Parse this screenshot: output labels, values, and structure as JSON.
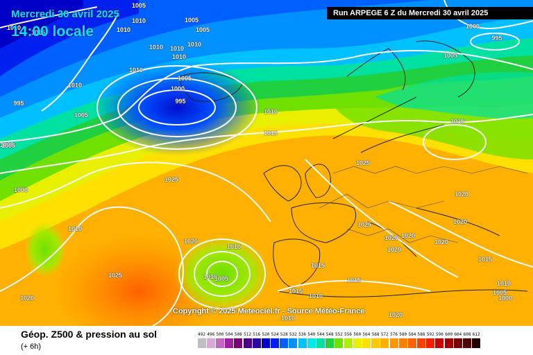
{
  "header": {
    "date": "Mercredi 30 avril 2025",
    "time": "14:00 locale",
    "run": "Run ARPEGE 6 Z du Mercredi 30 avril 2025"
  },
  "copyright": "Copyright © 2025 Meteociel.fr - Source Météo-France",
  "footer": {
    "title": "Géop. Z500 & pression au sol",
    "subtitle": "(+ 6h)"
  },
  "legend_scale": [
    {
      "label": "492",
      "color": "#bfbfbf"
    },
    {
      "label": "496",
      "color": "#d6a8d6"
    },
    {
      "label": "500",
      "color": "#c266c2"
    },
    {
      "label": "504",
      "color": "#a020a0"
    },
    {
      "label": "508",
      "color": "#7a007a"
    },
    {
      "label": "512",
      "color": "#4b0082"
    },
    {
      "label": "516",
      "color": "#2a0aa0"
    },
    {
      "label": "520",
      "color": "#0000c8"
    },
    {
      "label": "524",
      "color": "#0020f0"
    },
    {
      "label": "528",
      "color": "#0060ff"
    },
    {
      "label": "532",
      "color": "#0090ff"
    },
    {
      "label": "536",
      "color": "#00c0ff"
    },
    {
      "label": "540",
      "color": "#00e8e8"
    },
    {
      "label": "544",
      "color": "#00e0a0"
    },
    {
      "label": "548",
      "color": "#20d040"
    },
    {
      "label": "552",
      "color": "#70e000"
    },
    {
      "label": "556",
      "color": "#b0f000"
    },
    {
      "label": "560",
      "color": "#e8f000"
    },
    {
      "label": "564",
      "color": "#ffe000"
    },
    {
      "label": "568",
      "color": "#ffc800"
    },
    {
      "label": "572",
      "color": "#ffb000"
    },
    {
      "label": "576",
      "color": "#ff9800"
    },
    {
      "label": "580",
      "color": "#ff8000"
    },
    {
      "label": "584",
      "color": "#ff6400"
    },
    {
      "label": "588",
      "color": "#ff4000"
    },
    {
      "label": "592",
      "color": "#f02000"
    },
    {
      "label": "596",
      "color": "#c80000"
    },
    {
      "label": "600",
      "color": "#a00000"
    },
    {
      "label": "604",
      "color": "#780000"
    },
    {
      "label": "608",
      "color": "#500000"
    },
    {
      "label": "612",
      "color": "#200000"
    }
  ],
  "isobar_labels": [
    "1005",
    "1010",
    "1015",
    "1010",
    "1005",
    "1010",
    "1010",
    "1010",
    "1010",
    "1005",
    "1010",
    "1010",
    "1010",
    "1005",
    "1000",
    "995",
    "995",
    "1005",
    "1005",
    "1000",
    "1010",
    "1015",
    "1025",
    "1025",
    "1010",
    "1000",
    "1010",
    "1020",
    "1025",
    "1010",
    "1005",
    "1005",
    "1015",
    "1025",
    "1015",
    "1010",
    "1020",
    "1020",
    "1020",
    "1020",
    "1020",
    "1020",
    "1020",
    "1015",
    "1015",
    "1010",
    "1010",
    "1005",
    "1005",
    "1000",
    "995",
    "1020",
    "1015"
  ]
}
